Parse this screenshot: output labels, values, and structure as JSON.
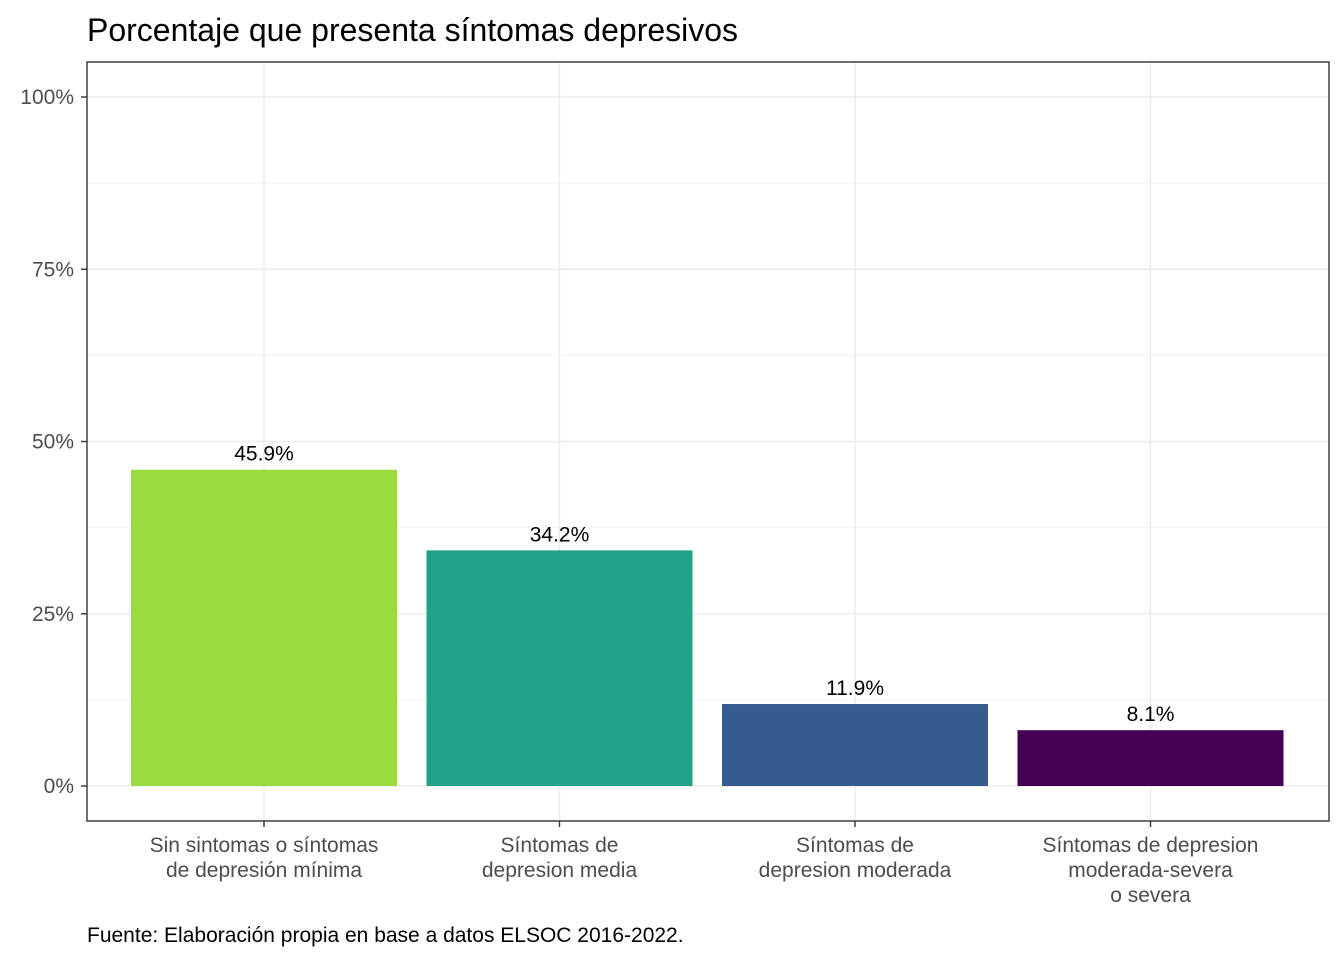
{
  "chart_data": {
    "type": "bar",
    "title": "Porcentaje que presenta síntomas depresivos",
    "caption": "Fuente: Elaboración propia en base a datos ELSOC 2016-2022.",
    "xlabel": "",
    "ylabel": "",
    "ylim": [
      0,
      1.05
    ],
    "yticks": [
      0,
      0.25,
      0.5,
      0.75,
      1.0
    ],
    "ytick_labels": [
      "0%",
      "25%",
      "50%",
      "75%",
      "100%"
    ],
    "grid": true,
    "legend": "none",
    "categories": [
      [
        "Sin sintomas o síntomas",
        "de depresión mínima"
      ],
      [
        "Síntomas de",
        "depresion media"
      ],
      [
        "Síntomas de",
        "depresion moderada"
      ],
      [
        "Síntomas de depresion",
        "moderada-severa",
        "o severa"
      ]
    ],
    "values": [
      0.459,
      0.342,
      0.119,
      0.081
    ],
    "value_labels": [
      "45.9%",
      "34.2%",
      "11.9%",
      "8.1%"
    ],
    "colors": [
      "#9ADB3E",
      "#1FA287",
      "#365C8D",
      "#440154"
    ]
  }
}
